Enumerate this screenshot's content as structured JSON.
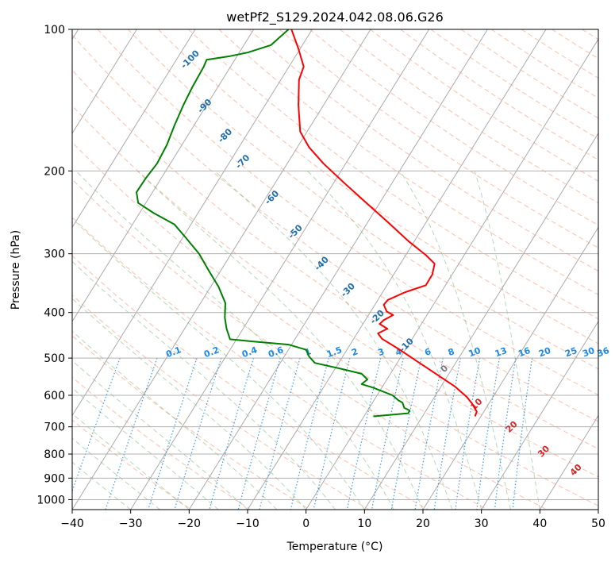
{
  "chart_data": {
    "type": "line",
    "title": "wetPf2_S129.2024.042.08.06.G26",
    "xlabel": "Temperature (°C)",
    "ylabel": "Pressure (hPa)",
    "xlim": [
      -40,
      50
    ],
    "ylim": [
      1050,
      100
    ],
    "y_scale": "log",
    "grid": true,
    "x_ticks": [
      -40,
      -30,
      -20,
      -10,
      0,
      10,
      20,
      30,
      40,
      50
    ],
    "y_ticks": [
      100,
      200,
      300,
      400,
      500,
      600,
      700,
      800,
      900,
      1000
    ],
    "isotherm_labels": [
      {
        "text": "-100",
        "x": -19.5,
        "p": 117
      },
      {
        "text": "-90",
        "x": -17.0,
        "p": 147
      },
      {
        "text": "-80",
        "x": -13.5,
        "p": 170
      },
      {
        "text": "-70",
        "x": -10.5,
        "p": 193
      },
      {
        "text": "-60",
        "x": -5.5,
        "p": 230
      },
      {
        "text": "-50",
        "x": -1.5,
        "p": 272
      },
      {
        "text": "-40",
        "x": 3.0,
        "p": 318
      },
      {
        "text": "-30",
        "x": 7.5,
        "p": 362
      },
      {
        "text": "-20",
        "x": 12.5,
        "p": 413
      },
      {
        "text": "-10",
        "x": 17.5,
        "p": 474
      },
      {
        "text": "0",
        "x": 24.0,
        "p": 532
      },
      {
        "text": "10",
        "x": 29.5,
        "p": 633
      },
      {
        "text": "20",
        "x": 35.5,
        "p": 707
      },
      {
        "text": "30",
        "x": 41.0,
        "p": 797
      },
      {
        "text": "40",
        "x": 46.5,
        "p": 873
      }
    ],
    "mixing_ratio_labels": [
      {
        "text": "0.1",
        "x": -22.5
      },
      {
        "text": "0.2",
        "x": -16.0
      },
      {
        "text": "0.4",
        "x": -9.5
      },
      {
        "text": "0.6",
        "x": -5.0
      },
      {
        "text": "1",
        "x": 0.5
      },
      {
        "text": "1.5",
        "x": 5.0
      },
      {
        "text": "2",
        "x": 8.5
      },
      {
        "text": "3",
        "x": 13.0
      },
      {
        "text": "4",
        "x": 16.0
      },
      {
        "text": "6",
        "x": 21.0
      },
      {
        "text": "8",
        "x": 25.0
      },
      {
        "text": "10",
        "x": 29.0
      },
      {
        "text": "13",
        "x": 33.5
      },
      {
        "text": "16",
        "x": 37.5
      },
      {
        "text": "20",
        "x": 41.0
      },
      {
        "text": "25",
        "x": 45.5
      },
      {
        "text": "30",
        "x": 48.5
      },
      {
        "text": "36",
        "x": 51.0
      }
    ],
    "series": [
      {
        "color": "#ff0000",
        "points": [
          [
            -2.5,
            100
          ],
          [
            -1.3,
            110
          ],
          [
            -0.4,
            120
          ],
          [
            -1.2,
            128
          ],
          [
            -1.3,
            145
          ],
          [
            -1.0,
            165
          ],
          [
            0.5,
            178
          ],
          [
            3.0,
            193
          ],
          [
            6.5,
            212
          ],
          [
            10.0,
            232
          ],
          [
            14.0,
            257
          ],
          [
            17.5,
            282
          ],
          [
            20.5,
            302
          ],
          [
            22.0,
            315
          ],
          [
            21.6,
            332
          ],
          [
            20.5,
            350
          ],
          [
            17.0,
            362
          ],
          [
            14.0,
            376
          ],
          [
            13.3,
            385
          ],
          [
            13.8,
            398
          ],
          [
            14.9,
            405
          ],
          [
            13.3,
            415
          ],
          [
            12.6,
            423
          ],
          [
            13.9,
            433
          ],
          [
            12.3,
            443
          ],
          [
            13.0,
            455
          ],
          [
            15.8,
            478
          ],
          [
            19.2,
            510
          ],
          [
            22.5,
            543
          ],
          [
            25.5,
            575
          ],
          [
            27.5,
            605
          ],
          [
            28.4,
            625
          ],
          [
            29.2,
            650
          ],
          [
            28.9,
            665
          ]
        ]
      },
      {
        "color": "#008000",
        "points": [
          [
            -3.0,
            100
          ],
          [
            -6.0,
            108
          ],
          [
            -10.0,
            112
          ],
          [
            -13.0,
            114
          ],
          [
            -17.0,
            116
          ],
          [
            -17.5,
            120
          ],
          [
            -19.5,
            133
          ],
          [
            -21.0,
            145
          ],
          [
            -22.5,
            160
          ],
          [
            -23.8,
            176
          ],
          [
            -25.5,
            193
          ],
          [
            -27.5,
            208
          ],
          [
            -29.0,
            222
          ],
          [
            -28.7,
            234
          ],
          [
            -26.0,
            246
          ],
          [
            -22.5,
            260
          ],
          [
            -20.5,
            278
          ],
          [
            -18.3,
            300
          ],
          [
            -16.5,
            328
          ],
          [
            -15.0,
            352
          ],
          [
            -13.8,
            382
          ],
          [
            -13.9,
            410
          ],
          [
            -13.6,
            433
          ],
          [
            -13.0,
            456
          ],
          [
            -9.0,
            461
          ],
          [
            -3.0,
            468
          ],
          [
            0.0,
            480
          ],
          [
            0.5,
            496
          ],
          [
            1.5,
            512
          ],
          [
            6.0,
            527
          ],
          [
            9.5,
            540
          ],
          [
            10.5,
            555
          ],
          [
            9.5,
            568
          ],
          [
            11.5,
            578
          ],
          [
            14.8,
            600
          ],
          [
            15.8,
            615
          ],
          [
            16.5,
            622
          ],
          [
            16.8,
            638
          ],
          [
            17.7,
            646
          ],
          [
            17.5,
            655
          ],
          [
            11.5,
            665
          ]
        ]
      }
    ]
  }
}
